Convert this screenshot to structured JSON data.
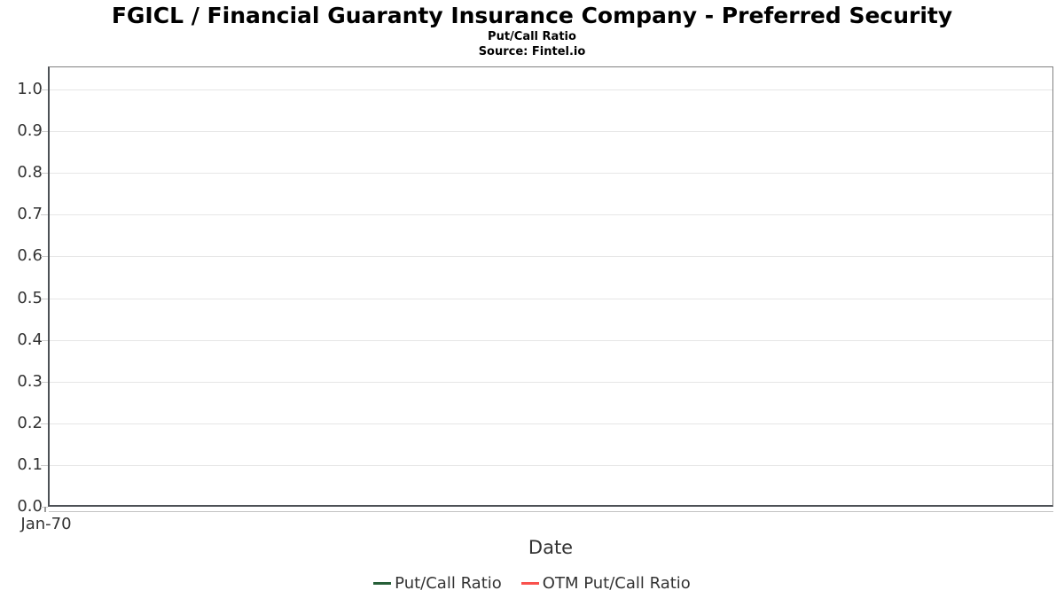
{
  "chart_data": {
    "type": "line",
    "title": "FGICL / Financial Guaranty Insurance Company - Preferred Security",
    "subtitle": "Put/Call Ratio",
    "source": "Source: Fintel.io",
    "xlabel": "Date",
    "ylabel": "",
    "x_ticks": [
      "Jan-70"
    ],
    "y_ticks": [
      "0.0",
      "0.1",
      "0.2",
      "0.3",
      "0.4",
      "0.5",
      "0.6",
      "0.7",
      "0.8",
      "0.9",
      "1.0"
    ],
    "ylim": [
      0,
      1.05
    ],
    "grid": true,
    "legend_position": "bottom",
    "series": [
      {
        "name": "Put/Call Ratio",
        "color": "#265f38",
        "x": [],
        "values": []
      },
      {
        "name": "OTM Put/Call Ratio",
        "color": "#f9514d",
        "x": [],
        "values": []
      }
    ]
  }
}
